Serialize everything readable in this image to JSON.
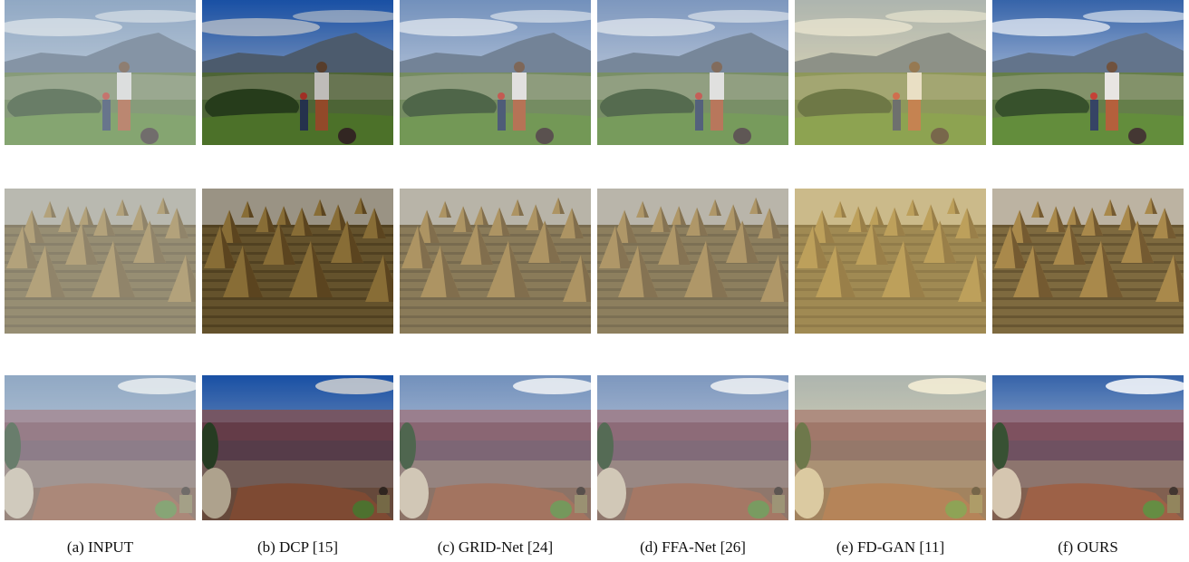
{
  "figure": {
    "columns": [
      {
        "id": "input",
        "caption": "(a)  INPUT",
        "tint": "#b9c3cc"
      },
      {
        "id": "dcp",
        "caption": "(b)  DCP [15]",
        "tint": "#3a5c8a"
      },
      {
        "id": "grid-net",
        "caption": "(c)  GRID-Net [24]",
        "tint": "#8d9fb4"
      },
      {
        "id": "ffa-net",
        "caption": "(d)  FFA-Net [26]",
        "tint": "#95a6ba"
      },
      {
        "id": "fd-gan",
        "caption": "(e)  FD-GAN [11]",
        "tint": "#d8cfa4"
      },
      {
        "id": "ours",
        "caption": "(f)  OURS",
        "tint": "#6f8db3"
      }
    ],
    "rows": [
      {
        "id": "mountain-valley"
      },
      {
        "id": "haystack-field"
      },
      {
        "id": "canyon"
      }
    ]
  }
}
